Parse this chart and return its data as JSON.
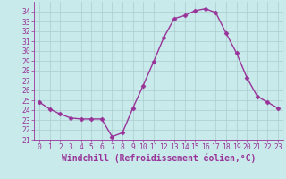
{
  "x": [
    0,
    1,
    2,
    3,
    4,
    5,
    6,
    7,
    8,
    9,
    10,
    11,
    12,
    13,
    14,
    15,
    16,
    17,
    18,
    19,
    20,
    21,
    22,
    23
  ],
  "y": [
    24.8,
    24.1,
    23.6,
    23.2,
    23.1,
    23.1,
    23.1,
    21.3,
    21.7,
    24.2,
    26.5,
    28.9,
    31.4,
    33.3,
    33.6,
    34.1,
    34.3,
    33.9,
    31.8,
    29.8,
    27.3,
    25.4,
    24.8,
    24.2
  ],
  "line_color": "#993399",
  "marker": "D",
  "markersize": 2.5,
  "linewidth": 1.0,
  "xlabel": "Windchill (Refroidissement éolien,°C)",
  "ylim": [
    21,
    35
  ],
  "xlim": [
    -0.5,
    23.5
  ],
  "yticks": [
    21,
    22,
    23,
    24,
    25,
    26,
    27,
    28,
    29,
    30,
    31,
    32,
    33,
    34
  ],
  "xticks": [
    0,
    1,
    2,
    3,
    4,
    5,
    6,
    7,
    8,
    9,
    10,
    11,
    12,
    13,
    14,
    15,
    16,
    17,
    18,
    19,
    20,
    21,
    22,
    23
  ],
  "bg_color": "#c8eaea",
  "grid_color": "#aacccc",
  "tick_label_fontsize": 5.8,
  "xlabel_fontsize": 7.0
}
